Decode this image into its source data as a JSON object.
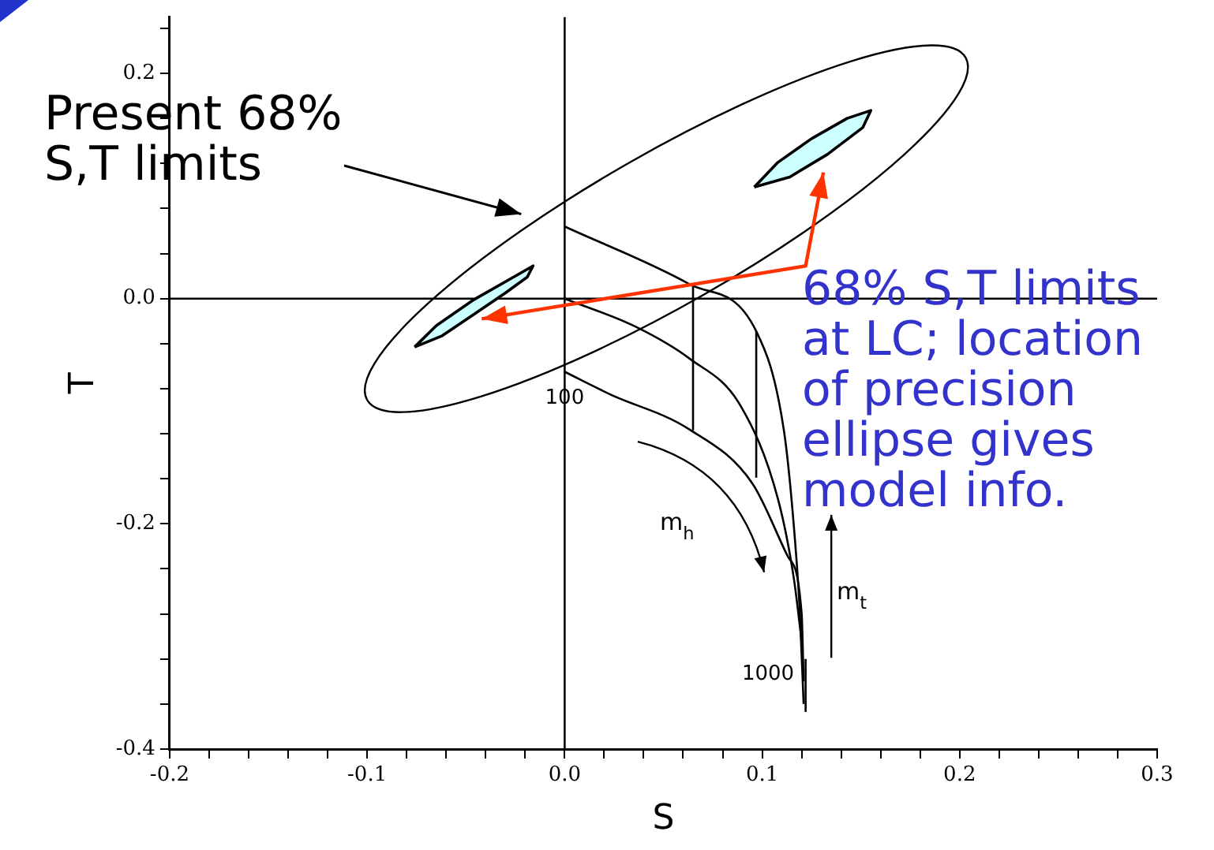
{
  "chart_data": {
    "type": "line",
    "xlabel": "S",
    "ylabel": "T",
    "marker": "none",
    "grid": false,
    "xlim": [
      -0.2,
      0.3
    ],
    "ylim": [
      -0.4,
      0.25
    ],
    "xticks": [
      -0.2,
      {
        "value": -0.18,
        "label": null
      },
      {
        "value": -0.16,
        "label": null
      },
      {
        "value": -0.14,
        "label": null
      },
      {
        "value": -0.12,
        "label": null
      },
      -0.1,
      {
        "value": -0.08,
        "label": null
      },
      {
        "value": -0.06,
        "label": null
      },
      {
        "value": -0.04,
        "label": null
      },
      {
        "value": -0.02,
        "label": null
      },
      {
        "value": 0,
        "label": "0.0"
      },
      {
        "value": 0.02,
        "label": null
      },
      {
        "value": 0.04,
        "label": null
      },
      {
        "value": 0.06,
        "label": null
      },
      {
        "value": 0.08,
        "label": null
      },
      0.1,
      {
        "value": 0.12,
        "label": null
      },
      {
        "value": 0.14,
        "label": null
      },
      {
        "value": 0.16,
        "label": null
      },
      {
        "value": 0.18,
        "label": null
      },
      0.2,
      {
        "value": 0.22,
        "label": null
      },
      {
        "value": 0.24,
        "label": null
      },
      {
        "value": 0.26,
        "label": null
      },
      {
        "value": 0.28,
        "label": null
      },
      0.3
    ],
    "yticks": [
      -0.4,
      {
        "value": -0.36,
        "label": null
      },
      {
        "value": -0.32,
        "label": null
      },
      {
        "value": -0.28,
        "label": null
      },
      {
        "value": -0.24,
        "label": null
      },
      -0.2,
      {
        "value": -0.16,
        "label": null
      },
      {
        "value": -0.12,
        "label": null
      },
      {
        "value": -0.08,
        "label": null
      },
      {
        "value": -0.04,
        "label": null
      },
      {
        "value": 0,
        "label": "0.0"
      },
      {
        "value": 0.04,
        "label": null
      },
      {
        "value": 0.08,
        "label": null
      },
      {
        "value": 0.12,
        "label": null
      },
      {
        "value": 0.16,
        "label": null
      },
      0.2,
      {
        "value": 0.24,
        "label": null
      }
    ],
    "series": [
      {
        "type": "area",
        "color": "#ccffff",
        "x": [
          -0.076,
          -0.065,
          -0.046,
          -0.027,
          -0.016,
          -0.019,
          -0.03,
          -0.046,
          -0.062,
          -0.076
        ],
        "values": [
          -0.043,
          -0.024,
          -0.001,
          0.018,
          0.029,
          0.019,
          0.005,
          -0.014,
          -0.033,
          -0.043
        ]
      },
      {
        "type": "area",
        "color": "#ccffff",
        "x": [
          0.096,
          0.108,
          0.125,
          0.143,
          0.155,
          0.151,
          0.133,
          0.114,
          0.096
        ],
        "values": [
          0.099,
          0.121,
          0.142,
          0.16,
          0.167,
          0.152,
          0.128,
          0.108,
          0.099
        ]
      },
      {
        "color": "#000000",
        "x": [
          0,
          0.063,
          0.097,
          0.111,
          0.116,
          0.119,
          0.121
        ],
        "values": [
          0.064,
          0.013,
          -0.029,
          -0.117,
          -0.201,
          -0.276,
          -0.36
        ]
      },
      {
        "color": "#000000",
        "x": [
          0,
          0.036,
          0.063,
          0.089,
          0.108,
          0.116,
          0.12
        ],
        "values": [
          0,
          -0.025,
          -0.053,
          -0.095,
          -0.178,
          -0.248,
          -0.304
        ]
      },
      {
        "color": "#000000",
        "x": [
          0,
          0.023,
          0.063,
          0.095,
          0.113,
          0.12,
          0.121
        ],
        "values": [
          -0.065,
          -0.085,
          -0.116,
          -0.164,
          -0.229,
          -0.28,
          -0.34
        ]
      },
      {
        "color": "#000000",
        "x": [
          0,
          0
        ],
        "values": [
          -0.4,
          0.25
        ]
      },
      {
        "color": "#000000",
        "x": [
          -0.2,
          0.3
        ],
        "values": [
          0,
          0
        ]
      },
      {
        "color": "#000000",
        "x": [
          0.065,
          0.065
        ],
        "values": [
          0.013,
          -0.117
        ]
      },
      {
        "color": "#000000",
        "x": [
          0.097,
          0.097
        ],
        "values": [
          -0.029,
          -0.159
        ]
      },
      {
        "color": "#000000",
        "x": [
          0.122,
          0.122
        ],
        "values": [
          -0.32,
          -0.367
        ]
      }
    ],
    "annotations": [
      "Present 68%\nS,T limits",
      "68% S,T limits\nat LC; location\nof precision\nellipse gives\nmodel info.",
      {
        "text": "100",
        "x": 0,
        "y": -0.065
      },
      {
        "text": "1000",
        "x": 0.121,
        "y": -0.33
      },
      "m$_{h}$",
      "m$_{t}$"
    ]
  }
}
